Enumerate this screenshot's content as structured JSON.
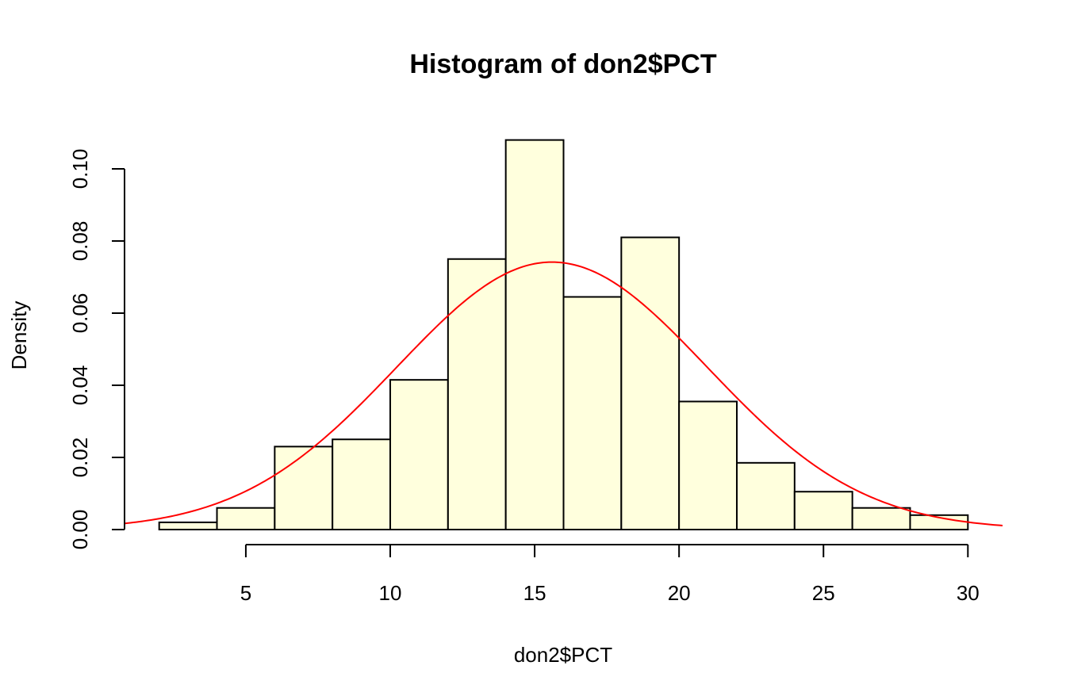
{
  "chart_data": {
    "type": "bar",
    "title": "Histogram of don2$PCT",
    "xlabel": "don2$PCT",
    "ylabel": "Density",
    "xlim": [
      0.8,
      31.2
    ],
    "ylim": [
      0,
      0.1
    ],
    "x_ticks": [
      5,
      10,
      15,
      20,
      25,
      30
    ],
    "x_tick_labels": [
      "5",
      "10",
      "15",
      "20",
      "25",
      "30"
    ],
    "y_ticks": [
      0,
      0.02,
      0.04,
      0.06,
      0.08,
      0.1
    ],
    "y_tick_labels": [
      "0.00",
      "0.02",
      "0.04",
      "0.06",
      "0.08",
      "0.10"
    ],
    "bins": [
      {
        "x0": 2,
        "x1": 4,
        "density": 0.002
      },
      {
        "x0": 4,
        "x1": 6,
        "density": 0.006
      },
      {
        "x0": 6,
        "x1": 8,
        "density": 0.023
      },
      {
        "x0": 8,
        "x1": 10,
        "density": 0.025
      },
      {
        "x0": 10,
        "x1": 12,
        "density": 0.0415
      },
      {
        "x0": 12,
        "x1": 14,
        "density": 0.075
      },
      {
        "x0": 14,
        "x1": 16,
        "density": 0.108
      },
      {
        "x0": 16,
        "x1": 18,
        "density": 0.0645
      },
      {
        "x0": 18,
        "x1": 20,
        "density": 0.081
      },
      {
        "x0": 20,
        "x1": 22,
        "density": 0.0355
      },
      {
        "x0": 22,
        "x1": 24,
        "density": 0.0185
      },
      {
        "x0": 24,
        "x1": 26,
        "density": 0.0105
      },
      {
        "x0": 26,
        "x1": 28,
        "density": 0.006
      },
      {
        "x0": 28,
        "x1": 30,
        "density": 0.004
      }
    ],
    "normal_curve": {
      "mean": 15.6,
      "sd": 5.38
    },
    "grid": false,
    "colors": {
      "bar_fill": "#FFFFDD",
      "bar_stroke": "#000000",
      "curve": "#FF0000"
    }
  }
}
